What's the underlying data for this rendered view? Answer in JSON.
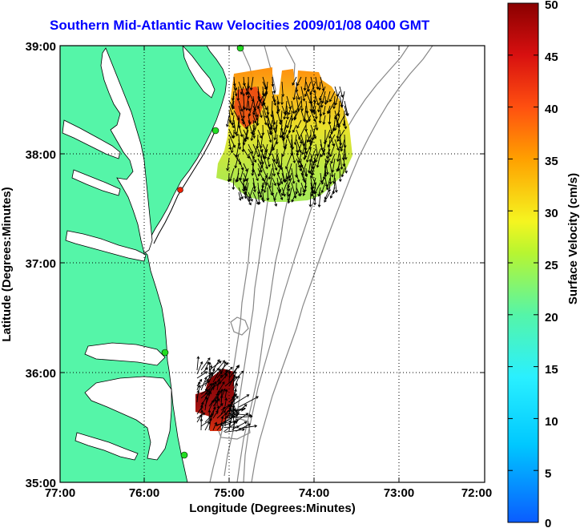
{
  "title": "Southern Mid-Atlantic Raw Velocities 2009/01/08 0400 GMT",
  "axes": {
    "xlabel": "Longitude (Degrees:Minutes)",
    "ylabel": "Latitude (Degrees:Minutes)",
    "xticks": [
      "77:00",
      "76:00",
      "75:00",
      "74:00",
      "73:00",
      "72:00"
    ],
    "yticks": [
      "39:00",
      "38:00",
      "37:00",
      "36:00",
      "35:00"
    ],
    "grid": "dotted"
  },
  "colorbar": {
    "label": "Surface Velocity (cm/s)",
    "ticks": [
      "50",
      "45",
      "40",
      "35",
      "30",
      "25",
      "20",
      "15",
      "10",
      "5",
      "0"
    ],
    "min": 0,
    "max": 50
  },
  "colors": {
    "land": "#55f5a8",
    "water": "#ffffff",
    "bathymetry": "#888888",
    "station": "#22dd22",
    "station_alert": "#ee2200",
    "title": "#0000ff"
  }
}
